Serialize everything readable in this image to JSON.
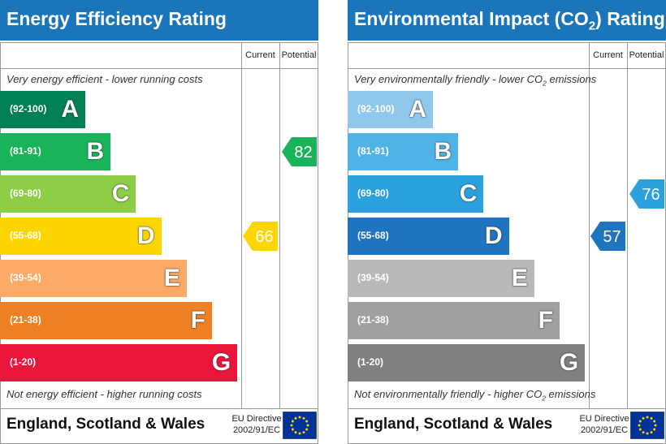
{
  "panels": [
    {
      "title": [
        "Energy Efficiency Rating"
      ],
      "columns": [
        "Current",
        "Potential"
      ],
      "top_note": [
        "Very energy efficient - lower running costs"
      ],
      "bottom_note": [
        "Not energy efficient - higher running costs"
      ],
      "bands": [
        {
          "range": "(92-100)",
          "letter": "A",
          "color": "#008054"
        },
        {
          "range": "(81-91)",
          "letter": "B",
          "color": "#19b459"
        },
        {
          "range": "(69-80)",
          "letter": "C",
          "color": "#8dce46"
        },
        {
          "range": "(55-68)",
          "letter": "D",
          "color": "#ffd500"
        },
        {
          "range": "(39-54)",
          "letter": "E",
          "color": "#fcaa65"
        },
        {
          "range": "(21-38)",
          "letter": "F",
          "color": "#ef8023"
        },
        {
          "range": "(1-20)",
          "letter": "G",
          "color": "#e9153b"
        }
      ],
      "current": 66,
      "potential": 82,
      "footer": "England, Scotland & Wales",
      "directive": [
        "EU Directive",
        "2002/91/EC"
      ]
    },
    {
      "title": [
        "Environmental Impact (CO",
        "2",
        ") Rating"
      ],
      "columns": [
        "Current",
        "Potential"
      ],
      "top_note": [
        "Very environmentally friendly - lower CO",
        "2",
        " emissions"
      ],
      "bottom_note": [
        "Not environmentally friendly - higher CO",
        "2",
        " emissions"
      ],
      "bands": [
        {
          "range": "(92-100)",
          "letter": "A",
          "color": "#8fc8ea"
        },
        {
          "range": "(81-91)",
          "letter": "B",
          "color": "#4fb3e6"
        },
        {
          "range": "(69-80)",
          "letter": "C",
          "color": "#2aa1dd"
        },
        {
          "range": "(55-68)",
          "letter": "D",
          "color": "#1f74bf"
        },
        {
          "range": "(39-54)",
          "letter": "E",
          "color": "#b9b9b9"
        },
        {
          "range": "(21-38)",
          "letter": "F",
          "color": "#a0a0a0"
        },
        {
          "range": "(1-20)",
          "letter": "G",
          "color": "#808080"
        }
      ],
      "current": 57,
      "potential": 76,
      "footer": "England, Scotland & Wales",
      "directive": [
        "EU Directive",
        "2002/91/EC"
      ]
    }
  ]
}
